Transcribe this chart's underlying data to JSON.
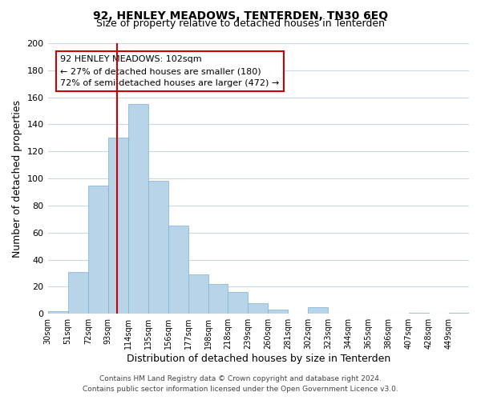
{
  "title": "92, HENLEY MEADOWS, TENTERDEN, TN30 6EQ",
  "subtitle": "Size of property relative to detached houses in Tenterden",
  "xlabel": "Distribution of detached houses by size in Tenterden",
  "ylabel": "Number of detached properties",
  "footer_line1": "Contains HM Land Registry data © Crown copyright and database right 2024.",
  "footer_line2": "Contains public sector information licensed under the Open Government Licence v3.0.",
  "bar_labels": [
    "30sqm",
    "51sqm",
    "72sqm",
    "93sqm",
    "114sqm",
    "135sqm",
    "156sqm",
    "177sqm",
    "198sqm",
    "218sqm",
    "239sqm",
    "260sqm",
    "281sqm",
    "302sqm",
    "323sqm",
    "344sqm",
    "365sqm",
    "386sqm",
    "407sqm",
    "428sqm",
    "449sqm"
  ],
  "bar_values": [
    2,
    31,
    95,
    130,
    155,
    98,
    65,
    29,
    22,
    16,
    8,
    3,
    0,
    5,
    0,
    0,
    0,
    0,
    1,
    0,
    1
  ],
  "bar_color": "#b8d4e8",
  "bar_edge_color": "#7bafd4",
  "annotation_title": "92 HENLEY MEADOWS: 102sqm",
  "annotation_line1": "← 27% of detached houses are smaller (180)",
  "annotation_line2": "72% of semi-detached houses are larger (472) →",
  "property_line_x": 102,
  "ylim": [
    0,
    200
  ],
  "yticks": [
    0,
    20,
    40,
    60,
    80,
    100,
    120,
    140,
    160,
    180,
    200
  ],
  "bin_edges": [
    30,
    51,
    72,
    93,
    114,
    135,
    156,
    177,
    198,
    218,
    239,
    260,
    281,
    302,
    323,
    344,
    365,
    386,
    407,
    428,
    449
  ],
  "red_line_color": "#cc0000",
  "annotation_box_color": "#ffffff",
  "annotation_box_edge": "#cc0000",
  "background_color": "#ffffff",
  "grid_color": "#c8d8e8"
}
